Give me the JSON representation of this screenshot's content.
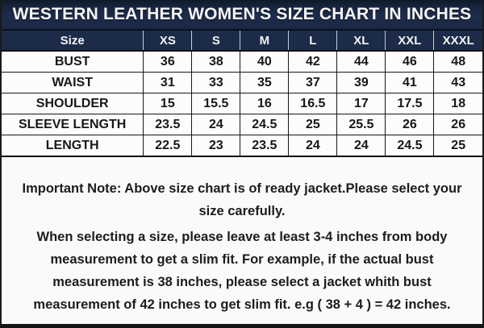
{
  "title": "WESTERN LEATHER WOMEN'S SIZE CHART IN INCHES",
  "table": {
    "columns": [
      "Size",
      "XS",
      "S",
      "M",
      "L",
      "XL",
      "XXL",
      "XXXL"
    ],
    "rows": [
      {
        "label": "BUST",
        "values": [
          "36",
          "38",
          "40",
          "42",
          "44",
          "46",
          "48"
        ]
      },
      {
        "label": "WAIST",
        "values": [
          "31",
          "33",
          "35",
          "37",
          "39",
          "41",
          "43"
        ]
      },
      {
        "label": "SHOULDER",
        "values": [
          "15",
          "15.5",
          "16",
          "16.5",
          "17",
          "17.5",
          "18"
        ]
      },
      {
        "label": "SLEEVE LENGTH",
        "values": [
          "23.5",
          "24",
          "24.5",
          "25",
          "25.5",
          "26",
          "26"
        ]
      },
      {
        "label": "LENGTH",
        "values": [
          "22.5",
          "23",
          "23.5",
          "24",
          "24",
          "24.5",
          "25"
        ]
      }
    ]
  },
  "note": {
    "paragraph1": "Important Note: Above size chart is of ready jacket.Please select your size carefully.",
    "paragraph2": "When selecting a size, please leave at least 3-4 inches from body measurement to get a slim fit. For example, if the actual bust measurement is 38 inches, please select a jacket whith bust measurement of 42 inches to get slim fit. e.g ( 38 + 4 ) = 42 inches."
  },
  "colors": {
    "navy": "#1c2b48",
    "grid": "#181818",
    "page_background": "#fbfaf8",
    "header_text": "#f2f3f5",
    "body_text": "#1c1c1c"
  }
}
